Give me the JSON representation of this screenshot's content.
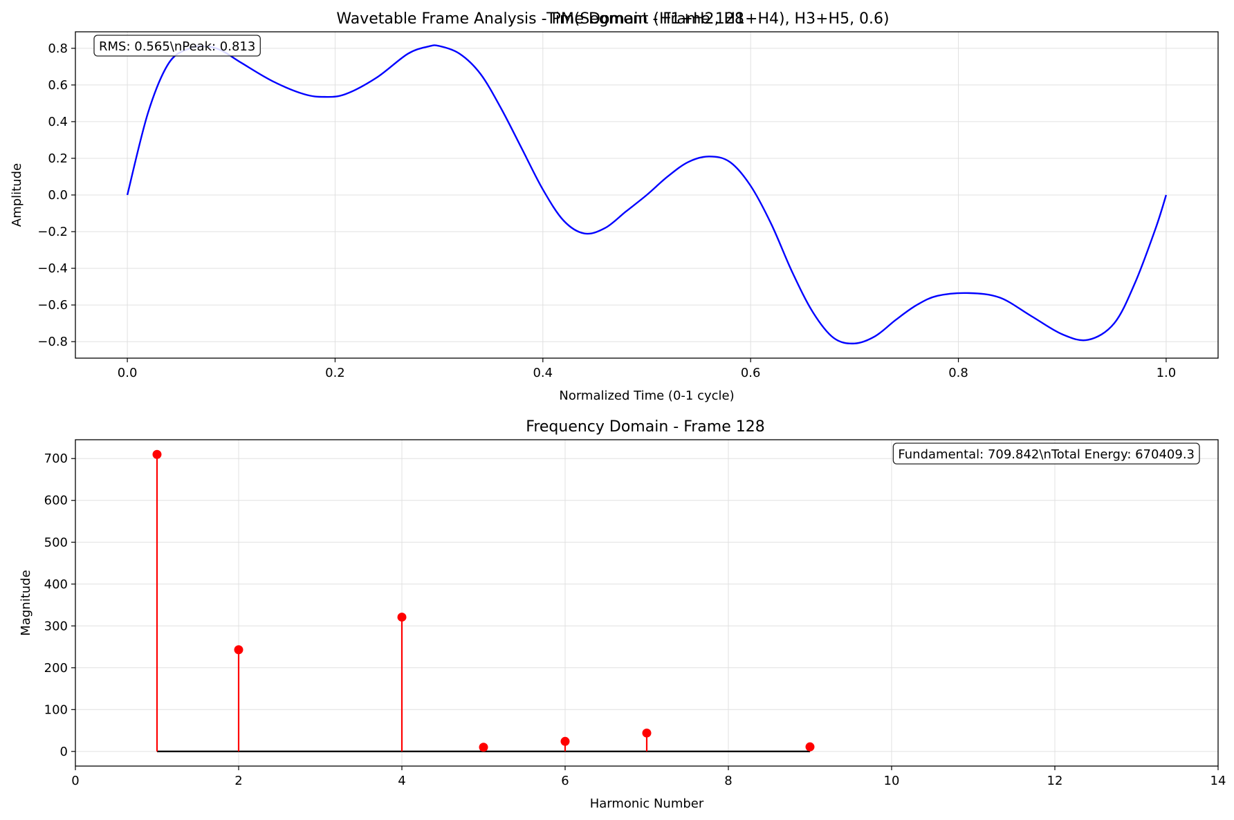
{
  "figure_titles": {
    "suptitle": "Wavetable Frame Analysis - PM(Segment (H1+H2, H1+H4), H3+H5, 0.6)",
    "suptitle_overlay": "Time Domain - Frame 128"
  },
  "chart_data": [
    {
      "type": "line",
      "title": "Time Domain - Frame 128",
      "xlabel": "Normalized Time (0-1 cycle)",
      "ylabel": "Amplitude",
      "xlim": [
        -0.05,
        1.05
      ],
      "ylim": [
        -0.89,
        0.89
      ],
      "xticks": [
        0.0,
        0.2,
        0.4,
        0.6,
        0.8,
        1.0
      ],
      "xtick_labels": [
        "0.0",
        "0.2",
        "0.4",
        "0.6",
        "0.8",
        "1.0"
      ],
      "yticks": [
        -0.8,
        -0.6,
        -0.4,
        -0.2,
        0.0,
        0.2,
        0.4,
        0.6,
        0.8
      ],
      "ytick_labels": [
        "−0.8",
        "−0.6",
        "−0.4",
        "−0.2",
        "0.0",
        "0.2",
        "0.4",
        "0.6",
        "0.8"
      ],
      "grid": true,
      "series": [
        {
          "color": "#0000ff",
          "x": [
            0.0,
            0.02,
            0.04,
            0.06,
            0.075,
            0.09,
            0.11,
            0.14,
            0.17,
            0.19,
            0.21,
            0.24,
            0.27,
            0.29,
            0.3,
            0.32,
            0.34,
            0.36,
            0.38,
            0.4,
            0.42,
            0.44,
            0.46,
            0.48,
            0.5,
            0.52,
            0.54,
            0.56,
            0.58,
            0.6,
            0.62,
            0.64,
            0.66,
            0.68,
            0.7,
            0.72,
            0.74,
            0.76,
            0.78,
            0.81,
            0.84,
            0.87,
            0.9,
            0.925,
            0.95,
            0.97,
            0.99,
            1.0
          ],
          "y": [
            0.0,
            0.45,
            0.72,
            0.8,
            0.81,
            0.79,
            0.72,
            0.62,
            0.55,
            0.535,
            0.55,
            0.64,
            0.77,
            0.81,
            0.813,
            0.77,
            0.66,
            0.47,
            0.25,
            0.03,
            -0.14,
            -0.21,
            -0.18,
            -0.09,
            0.0,
            0.1,
            0.18,
            0.21,
            0.18,
            0.05,
            -0.16,
            -0.42,
            -0.64,
            -0.78,
            -0.81,
            -0.77,
            -0.68,
            -0.6,
            -0.55,
            -0.535,
            -0.56,
            -0.66,
            -0.76,
            -0.79,
            -0.7,
            -0.48,
            -0.18,
            0.0
          ]
        }
      ],
      "annotation": "RMS: 0.565\\nPeak: 0.813"
    },
    {
      "type": "stem",
      "title": "Frequency Domain - Frame 128",
      "xlabel": "Harmonic Number",
      "ylabel": "Magnitude",
      "xlim": [
        0,
        14
      ],
      "ylim": [
        -35,
        745
      ],
      "xticks": [
        0,
        2,
        4,
        6,
        8,
        10,
        12,
        14
      ],
      "xtick_labels": [
        "0",
        "2",
        "4",
        "6",
        "8",
        "10",
        "12",
        "14"
      ],
      "yticks": [
        0,
        100,
        200,
        300,
        400,
        500,
        600,
        700
      ],
      "ytick_labels": [
        "0",
        "100",
        "200",
        "300",
        "400",
        "500",
        "600",
        "700"
      ],
      "grid": true,
      "stem_color": "#ff0000",
      "baseline_color": "#000000",
      "x": [
        1,
        2,
        4,
        5,
        6,
        7,
        9
      ],
      "values": [
        709.842,
        243,
        321,
        10,
        24,
        44,
        11
      ],
      "annotation": "Fundamental: 709.842\\nTotal Energy: 670409.3"
    }
  ]
}
